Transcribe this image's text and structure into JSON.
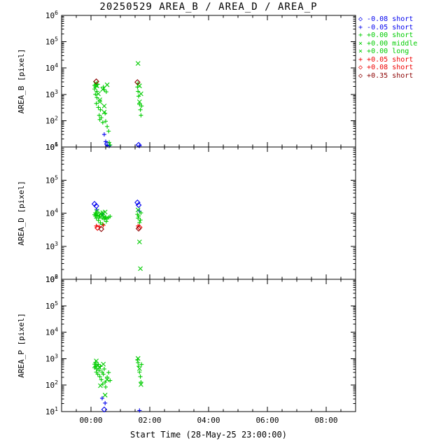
{
  "title": "20250529 AREA_B / AREA_D / AREA_P",
  "xlabel": "Start Time (28-May-25 23:00:00)",
  "x_axis": {
    "tmin": 0,
    "tmax": 10,
    "major": [
      {
        "t": 1,
        "label": "00:00"
      },
      {
        "t": 3,
        "label": "02:00"
      },
      {
        "t": 5,
        "label": "04:00"
      },
      {
        "t": 7,
        "label": "06:00"
      },
      {
        "t": 9,
        "label": "08:00"
      }
    ],
    "minor_step": 0.5
  },
  "colors": {
    "blue": "#0000ee",
    "green": "#00cc00",
    "red": "#ee0000",
    "darkred": "#8b0000",
    "axis": "#000000"
  },
  "legend": {
    "entries": [
      {
        "symbol": "diamond",
        "color": "#0000ee",
        "label": "-0.08 short"
      },
      {
        "symbol": "plus",
        "color": "#0000ee",
        "label": "-0.05 short"
      },
      {
        "symbol": "plus",
        "color": "#00cc00",
        "label": "+0.00 short"
      },
      {
        "symbol": "cross",
        "color": "#00cc00",
        "label": "+0.00 middle"
      },
      {
        "symbol": "cross",
        "color": "#00cc00",
        "label": "+0.00 long"
      },
      {
        "symbol": "plus",
        "color": "#ee0000",
        "label": "+0.05 short"
      },
      {
        "symbol": "diamond",
        "color": "#ee0000",
        "label": "+0.08 short"
      },
      {
        "symbol": "diamond",
        "color": "#8b0000",
        "label": "+0.35 short"
      }
    ]
  },
  "chart_data": [
    {
      "type": "scatter",
      "title": "AREA_B",
      "ylabel": "AREA_B [pixel]",
      "ylog": true,
      "ylim": [
        10,
        1000000
      ],
      "xlim_hours_after_23:00": [
        0,
        10
      ],
      "series": [
        {
          "name": "-0.08 short",
          "symbol": "diamond",
          "color": "#0000ee",
          "points": [
            [
              1.55,
              13
            ],
            [
              2.62,
              12
            ]
          ]
        },
        {
          "name": "-0.05 short",
          "symbol": "plus",
          "color": "#0000ee",
          "points": [
            [
              1.45,
              30
            ],
            [
              1.5,
              16
            ],
            [
              1.55,
              12
            ],
            [
              1.62,
              11
            ],
            [
              2.65,
              11
            ]
          ]
        },
        {
          "name": "+0.00 short",
          "symbol": "plus",
          "color": "#00cc00",
          "points": [
            [
              1.12,
              2200
            ],
            [
              1.12,
              1600
            ],
            [
              1.15,
              1900
            ],
            [
              1.15,
              1000
            ],
            [
              1.18,
              450
            ],
            [
              1.2,
              1300
            ],
            [
              1.2,
              750
            ],
            [
              1.23,
              2400
            ],
            [
              1.25,
              320
            ],
            [
              1.28,
              160
            ],
            [
              1.3,
              110
            ],
            [
              1.32,
              260
            ],
            [
              1.35,
              130
            ],
            [
              1.4,
              85
            ],
            [
              1.42,
              1900
            ],
            [
              1.45,
              1500
            ],
            [
              1.48,
              190
            ],
            [
              1.5,
              95
            ],
            [
              1.52,
              1250
            ],
            [
              1.55,
              60
            ],
            [
              1.6,
              40
            ],
            [
              1.62,
              15
            ],
            [
              1.65,
              12
            ],
            [
              2.58,
              1900
            ],
            [
              2.6,
              1300
            ],
            [
              2.6,
              2600
            ],
            [
              2.62,
              850
            ],
            [
              2.65,
              420
            ],
            [
              2.68,
              260
            ],
            [
              2.7,
              160
            ],
            [
              2.72,
              360
            ]
          ]
        },
        {
          "name": "+0.00 middle",
          "symbol": "cross",
          "color": "#00cc00",
          "points": [
            [
              1.15,
              2600
            ],
            [
              1.2,
              2100
            ],
            [
              1.25,
              1050
            ],
            [
              1.3,
              520
            ],
            [
              1.4,
              1550
            ],
            [
              1.45,
              360
            ],
            [
              1.55,
              2300
            ],
            [
              2.6,
              15000
            ],
            [
              2.65,
              2100
            ],
            [
              2.7,
              1050
            ]
          ]
        },
        {
          "name": "+0.00 long",
          "symbol": "cross",
          "color": "#00cc00",
          "points": [
            [
              1.3,
              620
            ],
            [
              1.45,
              210
            ],
            [
              2.65,
              520
            ]
          ]
        },
        {
          "name": "+0.05 short",
          "symbol": "plus",
          "color": "#ee0000",
          "points": []
        },
        {
          "name": "+0.08 short",
          "symbol": "diamond",
          "color": "#ee0000",
          "points": []
        },
        {
          "name": "+0.35 short",
          "symbol": "diamond",
          "color": "#8b0000",
          "points": [
            [
              1.18,
              3100
            ],
            [
              2.58,
              2900
            ]
          ]
        }
      ]
    },
    {
      "type": "scatter",
      "title": "AREA_D",
      "ylabel": "AREA_D [pixel]",
      "ylog": true,
      "ylim": [
        100,
        1000000
      ],
      "xlim_hours_after_23:00": [
        0,
        10
      ],
      "series": [
        {
          "name": "-0.08 short",
          "symbol": "diamond",
          "color": "#0000ee",
          "points": [
            [
              1.12,
              19000
            ],
            [
              1.18,
              16500
            ],
            [
              2.58,
              21000
            ],
            [
              2.62,
              17500
            ]
          ]
        },
        {
          "name": "-0.05 short",
          "symbol": "plus",
          "color": "#0000ee",
          "points": [
            [
              1.2,
              12500
            ],
            [
              1.4,
              9200
            ],
            [
              2.65,
              11500
            ]
          ]
        },
        {
          "name": "+0.00 short",
          "symbol": "plus",
          "color": "#00cc00",
          "points": [
            [
              1.12,
              9000
            ],
            [
              1.15,
              8200
            ],
            [
              1.15,
              10200
            ],
            [
              1.18,
              7100
            ],
            [
              1.2,
              9600
            ],
            [
              1.22,
              8600
            ],
            [
              1.25,
              6100
            ],
            [
              1.28,
              7600
            ],
            [
              1.3,
              8100
            ],
            [
              1.32,
              5100
            ],
            [
              1.35,
              9100
            ],
            [
              1.38,
              7100
            ],
            [
              1.4,
              4600
            ],
            [
              1.42,
              8200
            ],
            [
              1.45,
              6600
            ],
            [
              1.48,
              7200
            ],
            [
              1.5,
              7700
            ],
            [
              1.52,
              5600
            ],
            [
              1.55,
              6900
            ],
            [
              1.6,
              7400
            ],
            [
              1.65,
              8000
            ],
            [
              2.58,
              9200
            ],
            [
              2.6,
              7100
            ],
            [
              2.62,
              8200
            ],
            [
              2.65,
              5200
            ],
            [
              2.68,
              6200
            ],
            [
              2.7,
              10200
            ]
          ]
        },
        {
          "name": "+0.00 middle",
          "symbol": "cross",
          "color": "#00cc00",
          "points": [
            [
              1.2,
              11500
            ],
            [
              1.32,
              9800
            ],
            [
              1.48,
              10800
            ],
            [
              2.6,
              12500
            ],
            [
              2.65,
              1350
            ]
          ]
        },
        {
          "name": "+0.00 long",
          "symbol": "cross",
          "color": "#00cc00",
          "points": [
            [
              1.4,
              10300
            ],
            [
              2.68,
              210
            ]
          ]
        },
        {
          "name": "+0.05 short",
          "symbol": "plus",
          "color": "#ee0000",
          "points": [
            [
              1.18,
              4100
            ],
            [
              1.28,
              3900
            ],
            [
              1.42,
              4300
            ],
            [
              2.6,
              4100
            ]
          ]
        },
        {
          "name": "+0.08 short",
          "symbol": "diamond",
          "color": "#ee0000",
          "points": [
            [
              1.22,
              3600
            ],
            [
              2.65,
              3700
            ]
          ]
        },
        {
          "name": "+0.35 short",
          "symbol": "diamond",
          "color": "#8b0000",
          "points": [
            [
              1.35,
              3300
            ],
            [
              2.62,
              3400
            ]
          ]
        }
      ]
    },
    {
      "type": "scatter",
      "title": "AREA_P",
      "ylabel": "AREA_P [pixel]",
      "ylog": true,
      "ylim": [
        10,
        1000000
      ],
      "xlim_hours_after_23:00": [
        0,
        10
      ],
      "series": [
        {
          "name": "-0.08 short",
          "symbol": "diamond",
          "color": "#0000ee",
          "points": [
            [
              1.45,
              12
            ]
          ]
        },
        {
          "name": "-0.05 short",
          "symbol": "plus",
          "color": "#0000ee",
          "points": [
            [
              1.38,
              32
            ],
            [
              1.48,
              21
            ],
            [
              2.65,
              11
            ]
          ]
        },
        {
          "name": "+0.00 short",
          "symbol": "plus",
          "color": "#00cc00",
          "points": [
            [
              1.12,
              620
            ],
            [
              1.12,
              460
            ],
            [
              1.15,
              720
            ],
            [
              1.15,
              510
            ],
            [
              1.18,
              310
            ],
            [
              1.2,
              560
            ],
            [
              1.2,
              410
            ],
            [
              1.23,
              260
            ],
            [
              1.25,
              610
            ],
            [
              1.28,
              360
            ],
            [
              1.3,
              210
            ],
            [
              1.32,
              510
            ],
            [
              1.35,
              160
            ],
            [
              1.38,
              310
            ],
            [
              1.4,
              110
            ],
            [
              1.42,
              260
            ],
            [
              1.45,
              410
            ],
            [
              1.48,
              130
            ],
            [
              1.5,
              85
            ],
            [
              1.55,
              200
            ],
            [
              1.6,
              300
            ],
            [
              1.65,
              150
            ],
            [
              2.58,
              920
            ],
            [
              2.6,
              710
            ],
            [
              2.62,
              520
            ],
            [
              2.65,
              310
            ],
            [
              2.68,
              210
            ],
            [
              2.7,
              130
            ],
            [
              2.72,
              610
            ]
          ]
        },
        {
          "name": "+0.00 middle",
          "symbol": "cross",
          "color": "#00cc00",
          "points": [
            [
              1.18,
              820
            ],
            [
              1.28,
              470
            ],
            [
              1.42,
              620
            ],
            [
              1.55,
              160
            ],
            [
              2.6,
              1020
            ],
            [
              2.65,
              420
            ]
          ]
        },
        {
          "name": "+0.00 long",
          "symbol": "cross",
          "color": "#00cc00",
          "points": [
            [
              1.32,
              95
            ],
            [
              1.48,
              42
            ],
            [
              2.7,
              105
            ]
          ]
        },
        {
          "name": "+0.05 short",
          "symbol": "plus",
          "color": "#ee0000",
          "points": []
        },
        {
          "name": "+0.08 short",
          "symbol": "diamond",
          "color": "#ee0000",
          "points": []
        },
        {
          "name": "+0.35 short",
          "symbol": "diamond",
          "color": "#8b0000",
          "points": []
        }
      ]
    }
  ]
}
